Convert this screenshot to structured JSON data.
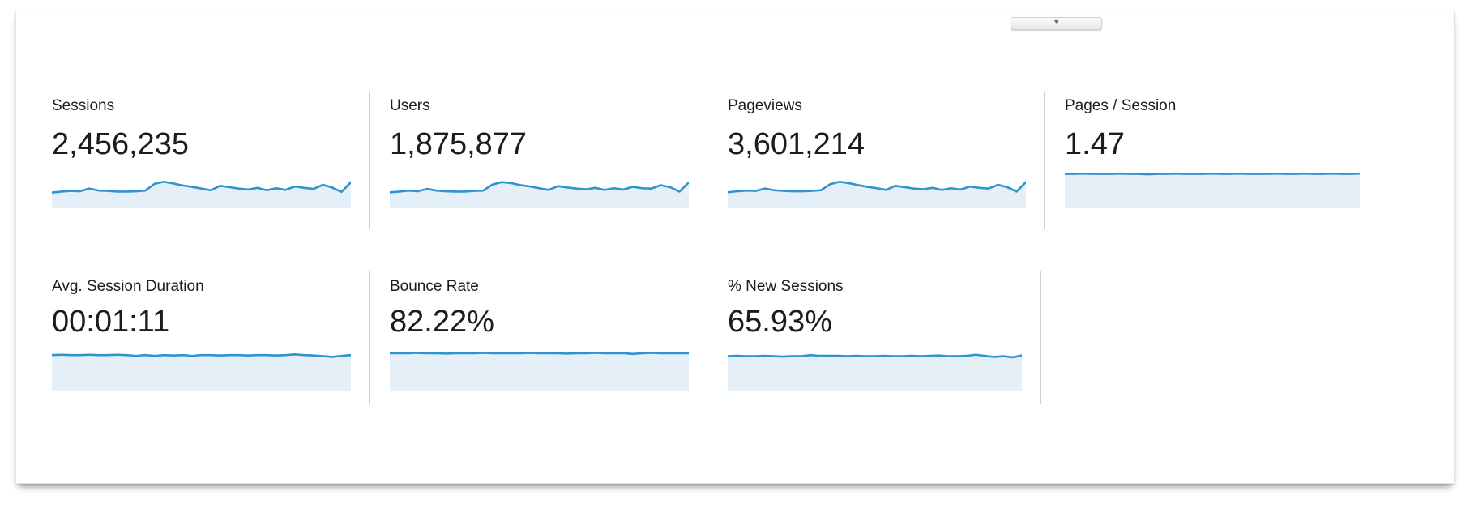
{
  "panel": {
    "collapse_tab": {
      "icon": "chevron-down-icon",
      "glyph": "▾"
    }
  },
  "colors": {
    "spark_line": "#2f93ce",
    "spark_fill": "#e4eff8",
    "divider": "#cfcfcf",
    "text": "#1c1c1c"
  },
  "metrics": [
    {
      "id": "sessions",
      "label": "Sessions",
      "value": "2,456,235",
      "sparkline": [
        0.4,
        0.43,
        0.45,
        0.44,
        0.52,
        0.46,
        0.45,
        0.43,
        0.43,
        0.44,
        0.46,
        0.66,
        0.72,
        0.67,
        0.61,
        0.57,
        0.52,
        0.47,
        0.6,
        0.56,
        0.52,
        0.49,
        0.54,
        0.47,
        0.53,
        0.48,
        0.58,
        0.54,
        0.51,
        0.63,
        0.55,
        0.42,
        0.71
      ]
    },
    {
      "id": "users",
      "label": "Users",
      "value": "1,875,877",
      "sparkline": [
        0.41,
        0.43,
        0.46,
        0.44,
        0.51,
        0.46,
        0.44,
        0.43,
        0.43,
        0.45,
        0.46,
        0.64,
        0.71,
        0.68,
        0.62,
        0.58,
        0.53,
        0.48,
        0.59,
        0.55,
        0.52,
        0.5,
        0.54,
        0.48,
        0.53,
        0.49,
        0.57,
        0.53,
        0.52,
        0.62,
        0.56,
        0.43,
        0.7
      ]
    },
    {
      "id": "pageviews",
      "label": "Pageviews",
      "value": "3,601,214",
      "sparkline": [
        0.41,
        0.44,
        0.46,
        0.45,
        0.52,
        0.47,
        0.45,
        0.44,
        0.44,
        0.45,
        0.47,
        0.65,
        0.72,
        0.68,
        0.62,
        0.57,
        0.53,
        0.48,
        0.6,
        0.56,
        0.52,
        0.5,
        0.54,
        0.48,
        0.53,
        0.49,
        0.58,
        0.54,
        0.52,
        0.63,
        0.56,
        0.43,
        0.71
      ]
    },
    {
      "id": "pages-per-session",
      "label": "Pages / Session",
      "value": "1.47",
      "sparkline": [
        0.95,
        0.95,
        0.96,
        0.95,
        0.95,
        0.95,
        0.96,
        0.95,
        0.95,
        0.94,
        0.95,
        0.95,
        0.96,
        0.95,
        0.95,
        0.95,
        0.96,
        0.95,
        0.95,
        0.96,
        0.95,
        0.95,
        0.95,
        0.96,
        0.95,
        0.95,
        0.96,
        0.95,
        0.95,
        0.96,
        0.95,
        0.95,
        0.96
      ]
    },
    {
      "id": "avg-session-duration",
      "label": "Avg. Session Duration",
      "value": "00:01:11",
      "sparkline": [
        0.9,
        0.91,
        0.9,
        0.9,
        0.91,
        0.9,
        0.9,
        0.91,
        0.9,
        0.88,
        0.9,
        0.88,
        0.9,
        0.89,
        0.9,
        0.88,
        0.9,
        0.9,
        0.89,
        0.9,
        0.9,
        0.89,
        0.9,
        0.9,
        0.89,
        0.9,
        0.92,
        0.9,
        0.89,
        0.87,
        0.85,
        0.88,
        0.9
      ]
    },
    {
      "id": "bounce-rate",
      "label": "Bounce Rate",
      "value": "82.22%",
      "sparkline": [
        0.95,
        0.95,
        0.95,
        0.96,
        0.95,
        0.95,
        0.94,
        0.95,
        0.95,
        0.95,
        0.96,
        0.95,
        0.95,
        0.95,
        0.95,
        0.96,
        0.95,
        0.95,
        0.95,
        0.94,
        0.95,
        0.95,
        0.96,
        0.95,
        0.95,
        0.95,
        0.93,
        0.95,
        0.96,
        0.95,
        0.95,
        0.95,
        0.95
      ]
    },
    {
      "id": "percent-new-sessions",
      "label": "% New Sessions",
      "value": "65.93%",
      "sparkline": [
        0.87,
        0.88,
        0.87,
        0.87,
        0.88,
        0.87,
        0.86,
        0.87,
        0.87,
        0.9,
        0.88,
        0.88,
        0.88,
        0.87,
        0.88,
        0.87,
        0.87,
        0.88,
        0.87,
        0.87,
        0.88,
        0.87,
        0.88,
        0.89,
        0.87,
        0.87,
        0.88,
        0.91,
        0.88,
        0.85,
        0.87,
        0.84,
        0.89
      ]
    }
  ]
}
